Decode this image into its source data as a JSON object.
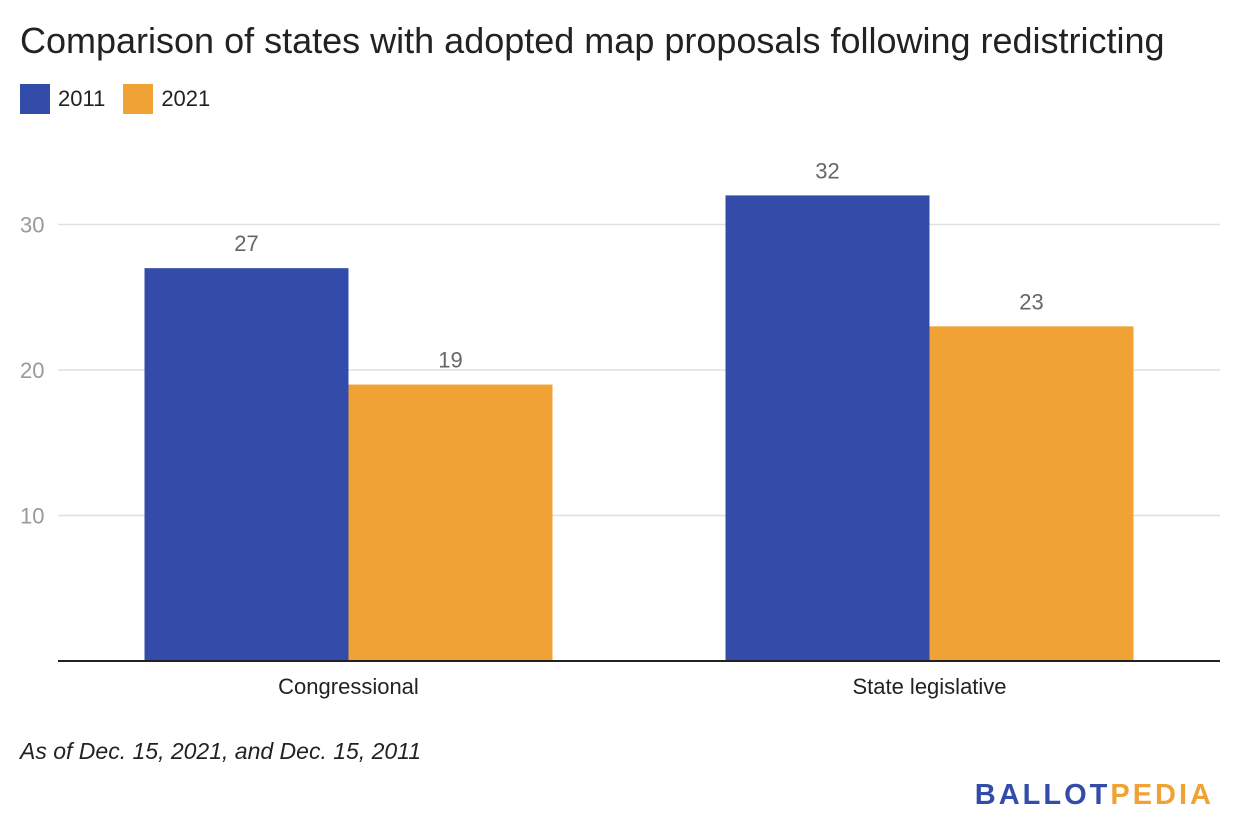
{
  "title": "Comparison of states with adopted map proposals following redistricting",
  "footnote": "As of Dec. 15, 2021, and Dec. 15, 2011",
  "logo": {
    "part1": "BALLOT",
    "part2": "PEDIA",
    "part1_color": "#344ca9",
    "part2_color": "#f0a334"
  },
  "colors": {
    "series_2011": "#344ca9",
    "series_2021": "#f0a334",
    "grid": "#e0e0e0",
    "axis": "#222222",
    "tick_label": "#999999",
    "data_label": "#666666"
  },
  "chart_data": {
    "type": "bar",
    "title": "Comparison of states with adopted map proposals following redistricting",
    "categories": [
      "Congressional",
      "State legislative"
    ],
    "series": [
      {
        "name": "2011",
        "values": [
          27,
          32
        ],
        "color": "#344ca9"
      },
      {
        "name": "2021",
        "values": [
          19,
          23
        ],
        "color": "#f0a334"
      }
    ],
    "xlabel": "",
    "ylabel": "",
    "ylim": [
      0,
      36
    ],
    "yticks": [
      10,
      20,
      30
    ],
    "grid": true,
    "legend": "top-left",
    "data_labels": true
  }
}
